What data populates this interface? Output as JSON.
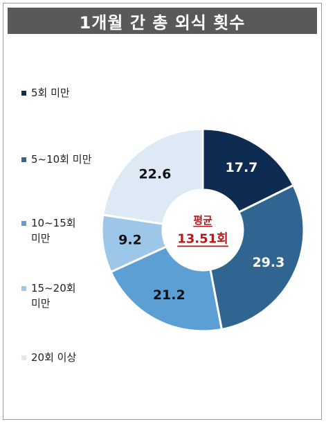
{
  "title": "1개월 간 총 외식 횟수",
  "chart_data": {
    "type": "pie",
    "variant": "donut",
    "legend_position": "left",
    "center_label": "평균",
    "center_value": "13.51회",
    "series": [
      {
        "name": "5회 미만",
        "value": 17.7,
        "label": "17.7",
        "color": "#0e2c52",
        "text_color": "#ffffff"
      },
      {
        "name": "5~10회 미만",
        "value": 29.3,
        "label": "29.3",
        "color": "#2f6590",
        "text_color": "#ffffff"
      },
      {
        "name": "10~15회\n미만",
        "value": 21.2,
        "label": "21.2",
        "color": "#5b9fd4",
        "text_color": "#111111"
      },
      {
        "name": "15~20회\n미만",
        "value": 9.2,
        "label": "9.2",
        "color": "#9dc7e8",
        "text_color": "#111111"
      },
      {
        "name": "20회 이상",
        "value": 22.6,
        "label": "22.6",
        "color": "#dde9f5",
        "text_color": "#111111"
      }
    ]
  }
}
